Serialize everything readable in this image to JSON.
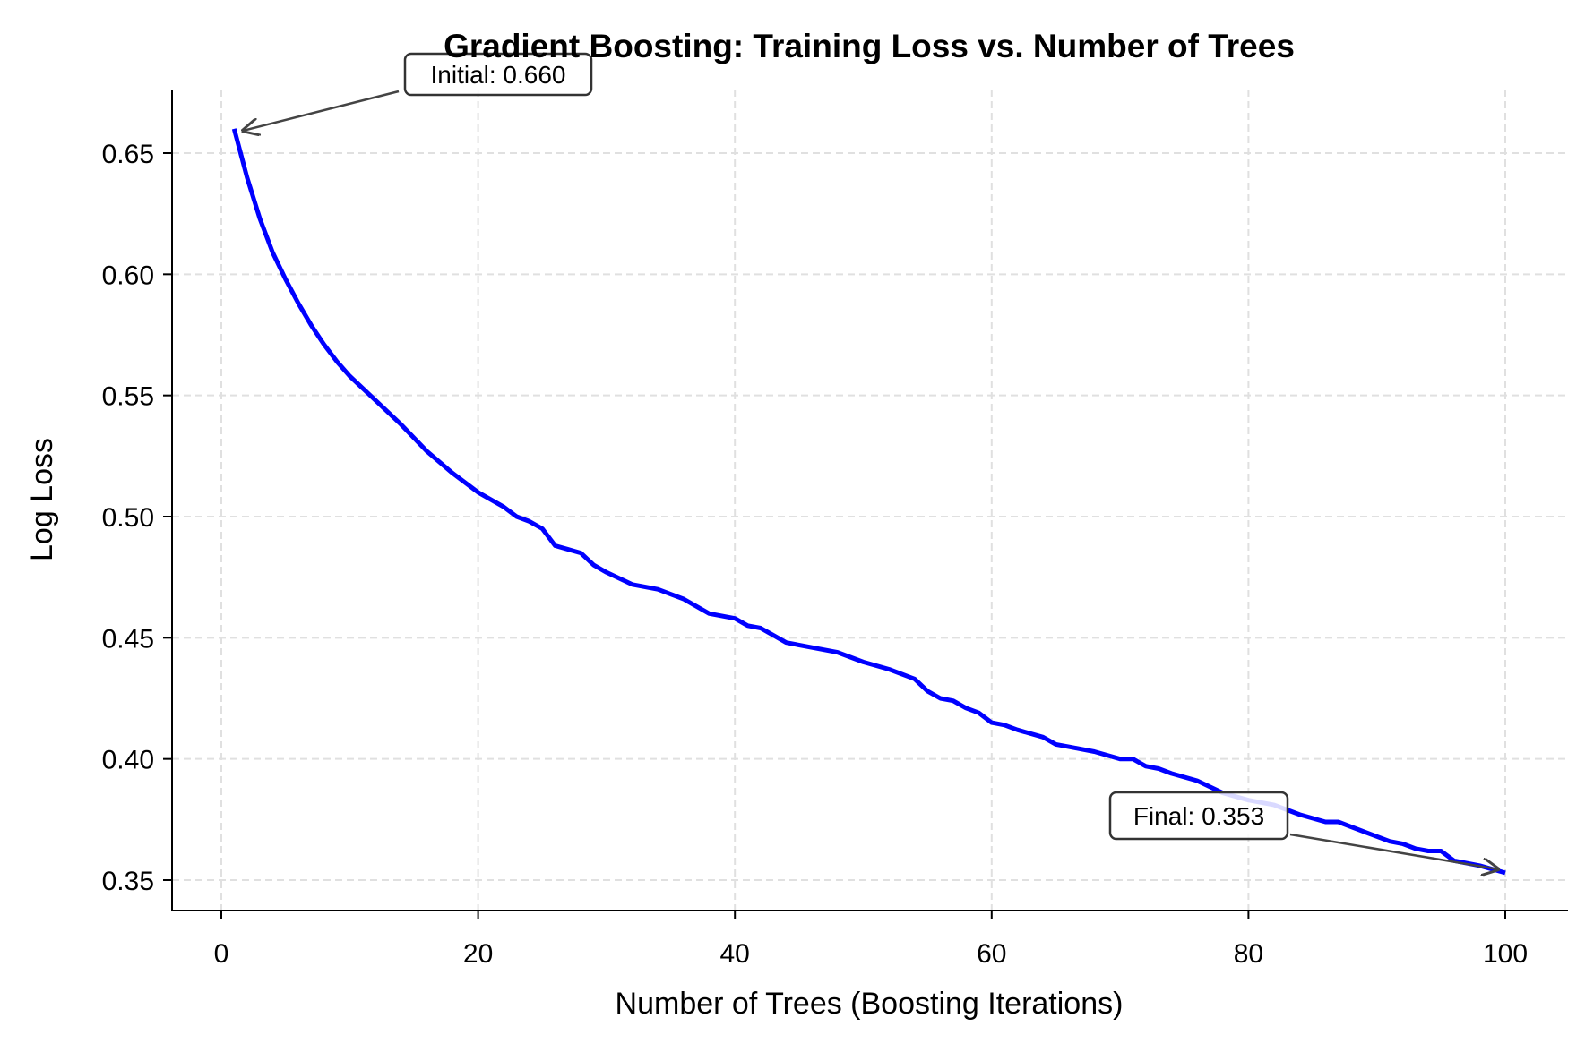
{
  "chart_data": {
    "type": "line",
    "title": "Gradient Boosting: Training Loss vs. Number of Trees",
    "xlabel": "Number of Trees (Boosting Iterations)",
    "ylabel": "Log Loss",
    "xlim": [
      -4,
      105
    ],
    "ylim": [
      0.337,
      0.676
    ],
    "xticks": [
      0,
      20,
      40,
      60,
      80,
      100
    ],
    "xtick_labels": [
      "0",
      "20",
      "40",
      "60",
      "80",
      "100"
    ],
    "yticks": [
      0.35,
      0.4,
      0.45,
      0.5,
      0.55,
      0.6,
      0.65
    ],
    "ytick_labels": [
      "0.35",
      "0.40",
      "0.45",
      "0.50",
      "0.55",
      "0.60",
      "0.65"
    ],
    "grid": true,
    "line_color": "#0000ff",
    "series": [
      {
        "x": [
          1,
          2,
          3,
          4,
          5,
          6,
          7,
          8,
          9,
          10,
          12,
          14,
          16,
          18,
          20,
          22,
          23,
          24,
          25,
          26,
          28,
          29,
          30,
          32,
          34,
          36,
          38,
          40,
          41,
          42,
          43,
          44,
          46,
          48,
          50,
          52,
          54,
          55,
          56,
          57,
          58,
          59,
          60,
          61,
          62,
          64,
          65,
          66,
          68,
          70,
          71,
          72,
          73,
          74,
          76,
          78,
          80,
          82,
          84,
          86,
          87,
          88,
          90,
          91,
          92,
          93,
          94,
          95,
          96,
          98,
          100
        ],
        "y": [
          0.66,
          0.64,
          0.623,
          0.609,
          0.598,
          0.588,
          0.579,
          0.571,
          0.564,
          0.558,
          0.548,
          0.538,
          0.527,
          0.518,
          0.51,
          0.504,
          0.5,
          0.498,
          0.495,
          0.488,
          0.485,
          0.48,
          0.477,
          0.472,
          0.47,
          0.466,
          0.46,
          0.458,
          0.455,
          0.454,
          0.451,
          0.448,
          0.446,
          0.444,
          0.44,
          0.437,
          0.433,
          0.428,
          0.425,
          0.424,
          0.421,
          0.419,
          0.415,
          0.414,
          0.412,
          0.409,
          0.406,
          0.405,
          0.403,
          0.4,
          0.4,
          0.397,
          0.396,
          0.394,
          0.391,
          0.386,
          0.383,
          0.381,
          0.377,
          0.374,
          0.374,
          0.372,
          0.368,
          0.366,
          0.365,
          0.363,
          0.362,
          0.362,
          0.358,
          0.356,
          0.353
        ]
      }
    ],
    "annotations": [
      {
        "text": "Initial: 0.660",
        "x": 1,
        "y": 0.66
      },
      {
        "text": "Final: 0.353",
        "x": 100,
        "y": 0.353
      }
    ]
  }
}
